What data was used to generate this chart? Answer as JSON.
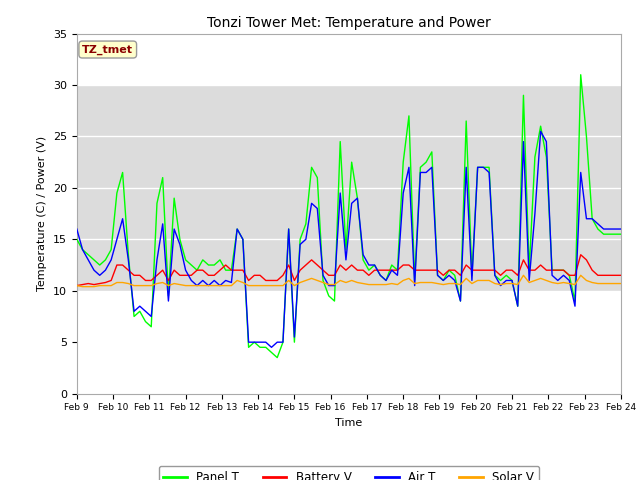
{
  "title": "Tonzi Tower Met: Temperature and Power",
  "xlabel": "Time",
  "ylabel": "Temperature (C) / Power (V)",
  "ylim": [
    0,
    35
  ],
  "yticks": [
    0,
    5,
    10,
    15,
    20,
    25,
    30,
    35
  ],
  "annotation_text": "TZ_tmet",
  "annotation_color": "#8B0000",
  "annotation_bg": "#FFFFCC",
  "fig_bg": "#FFFFFF",
  "plot_bg": "#FFFFFF",
  "band_bg": "#DCDCDC",
  "line_colors": {
    "panel_t": "#00FF00",
    "battery_v": "#FF0000",
    "air_t": "#0000FF",
    "solar_v": "#FFA500"
  },
  "legend_labels": [
    "Panel T",
    "Battery V",
    "Air T",
    "Solar V"
  ],
  "xtick_labels": [
    "Feb 9",
    "Feb 10",
    "Feb 11",
    "Feb 12",
    "Feb 13",
    "Feb 14",
    "Feb 15",
    "Feb 16",
    "Feb 17",
    "Feb 18",
    "Feb 19",
    "Feb 20",
    "Feb 21",
    "Feb 22",
    "Feb 23",
    "Feb 24"
  ],
  "panel_t": [
    15.0,
    14.0,
    13.5,
    13.0,
    12.5,
    13.0,
    14.0,
    19.5,
    21.5,
    13.5,
    7.5,
    8.0,
    7.0,
    6.5,
    18.5,
    21.0,
    9.5,
    19.0,
    15.0,
    13.0,
    12.5,
    12.0,
    13.0,
    12.5,
    12.5,
    13.0,
    12.0,
    12.0,
    16.0,
    15.0,
    4.5,
    5.0,
    4.5,
    4.5,
    4.0,
    3.5,
    5.0,
    16.0,
    5.0,
    15.0,
    16.5,
    22.0,
    21.0,
    11.0,
    9.5,
    9.0,
    24.5,
    14.0,
    22.5,
    19.0,
    13.0,
    12.0,
    12.5,
    11.5,
    11.0,
    12.5,
    12.0,
    22.5,
    27.0,
    11.0,
    22.0,
    22.5,
    23.5,
    11.5,
    11.0,
    12.0,
    11.5,
    9.0,
    26.5,
    11.5,
    22.0,
    22.0,
    22.0,
    11.5,
    11.0,
    11.5,
    11.0,
    8.5,
    29.0,
    12.0,
    23.0,
    26.0,
    23.0,
    12.0,
    12.0,
    12.0,
    11.5,
    9.0,
    31.0,
    25.0,
    17.0,
    16.0,
    15.5,
    15.5,
    15.5,
    15.5
  ],
  "battery_v": [
    10.5,
    10.6,
    10.7,
    10.6,
    10.7,
    10.8,
    11.0,
    12.5,
    12.5,
    12.0,
    11.5,
    11.5,
    11.0,
    11.0,
    11.5,
    12.0,
    11.0,
    12.0,
    11.5,
    11.5,
    11.5,
    12.0,
    12.0,
    11.5,
    11.5,
    12.0,
    12.5,
    12.0,
    12.0,
    12.0,
    11.0,
    11.5,
    11.5,
    11.0,
    11.0,
    11.0,
    11.5,
    12.5,
    11.0,
    12.0,
    12.5,
    13.0,
    12.5,
    12.0,
    11.5,
    11.5,
    12.5,
    12.0,
    12.5,
    12.0,
    12.0,
    11.5,
    12.0,
    12.0,
    12.0,
    12.0,
    12.0,
    12.5,
    12.5,
    12.0,
    12.0,
    12.0,
    12.0,
    12.0,
    11.5,
    12.0,
    12.0,
    11.5,
    12.5,
    12.0,
    12.0,
    12.0,
    12.0,
    12.0,
    11.5,
    12.0,
    12.0,
    11.5,
    13.0,
    12.0,
    12.0,
    12.5,
    12.0,
    12.0,
    12.0,
    12.0,
    11.5,
    11.5,
    13.5,
    13.0,
    12.0,
    11.5,
    11.5,
    11.5,
    11.5,
    11.5
  ],
  "air_t": [
    16.0,
    14.0,
    13.0,
    12.0,
    11.5,
    12.0,
    13.0,
    15.0,
    17.0,
    13.0,
    8.0,
    8.5,
    8.0,
    7.5,
    13.0,
    16.5,
    9.0,
    16.0,
    14.5,
    12.0,
    11.0,
    10.5,
    11.0,
    10.5,
    11.0,
    10.5,
    11.0,
    10.8,
    16.0,
    15.0,
    5.0,
    5.0,
    5.0,
    5.0,
    4.5,
    5.0,
    5.0,
    16.0,
    5.5,
    14.5,
    15.0,
    18.5,
    18.0,
    11.5,
    10.5,
    10.5,
    19.5,
    13.0,
    18.5,
    19.0,
    13.5,
    12.5,
    12.5,
    11.5,
    11.0,
    12.0,
    11.5,
    19.5,
    22.0,
    10.5,
    21.5,
    21.5,
    22.0,
    11.5,
    11.0,
    11.5,
    11.0,
    9.0,
    22.0,
    11.0,
    22.0,
    22.0,
    21.5,
    11.5,
    10.5,
    11.0,
    11.0,
    8.5,
    24.5,
    11.0,
    17.5,
    25.5,
    24.5,
    11.5,
    11.0,
    11.5,
    11.0,
    8.5,
    21.5,
    17.0,
    17.0,
    16.5,
    16.0,
    16.0,
    16.0,
    16.0
  ],
  "solar_v": [
    10.5,
    10.4,
    10.4,
    10.4,
    10.5,
    10.5,
    10.5,
    10.8,
    10.8,
    10.7,
    10.5,
    10.5,
    10.5,
    10.5,
    10.7,
    10.8,
    10.5,
    10.7,
    10.6,
    10.5,
    10.5,
    10.5,
    10.5,
    10.5,
    10.5,
    10.5,
    10.5,
    10.5,
    11.0,
    10.8,
    10.5,
    10.5,
    10.5,
    10.5,
    10.5,
    10.5,
    10.5,
    11.0,
    10.5,
    10.8,
    11.0,
    11.2,
    11.0,
    10.8,
    10.6,
    10.6,
    11.0,
    10.8,
    11.0,
    10.8,
    10.7,
    10.6,
    10.6,
    10.6,
    10.6,
    10.7,
    10.6,
    11.0,
    11.2,
    10.7,
    10.8,
    10.8,
    10.8,
    10.7,
    10.6,
    10.7,
    10.7,
    10.6,
    11.2,
    10.7,
    11.0,
    11.0,
    11.0,
    10.7,
    10.6,
    10.7,
    10.7,
    10.6,
    11.5,
    10.8,
    11.0,
    11.2,
    11.0,
    10.8,
    10.7,
    10.8,
    10.7,
    10.6,
    11.5,
    11.0,
    10.8,
    10.7,
    10.7,
    10.7,
    10.7,
    10.7
  ]
}
